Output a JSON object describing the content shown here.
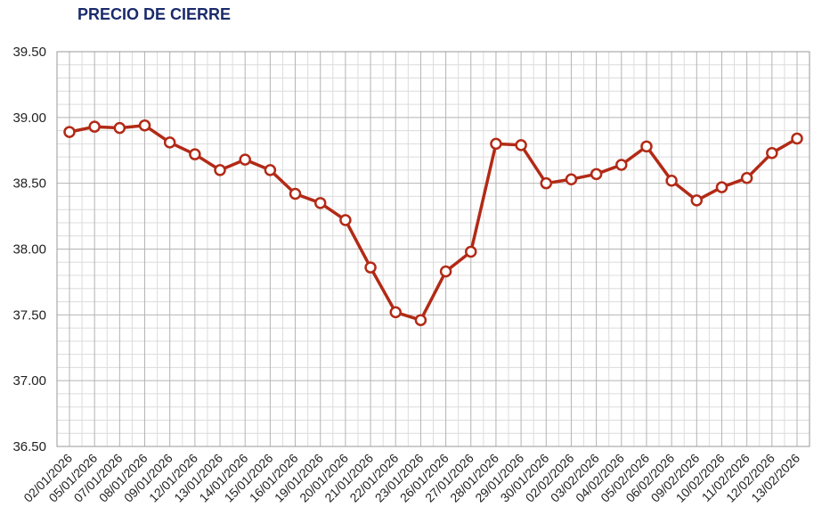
{
  "title": "PRECIO DE CIERRE",
  "colors": {
    "line": "#b22a16",
    "marker_fill": "#ffffff",
    "grid_major": "#b4b4b4",
    "grid_minor": "#dcdcdc",
    "title": "#1a2a6c"
  },
  "chart_data": {
    "type": "line",
    "title": "PRECIO DE CIERRE",
    "xlabel": "",
    "ylabel": "",
    "ylim": [
      36.5,
      39.5
    ],
    "y_ticks": [
      "36.50",
      "37.00",
      "37.50",
      "38.00",
      "38.50",
      "39.00",
      "39.50"
    ],
    "grid": true,
    "legend": "none",
    "categories": [
      "02/01/2026",
      "05/01/2026",
      "07/01/2026",
      "08/01/2026",
      "09/01/2026",
      "12/01/2026",
      "13/01/2026",
      "14/01/2026",
      "15/01/2026",
      "16/01/2026",
      "19/01/2026",
      "20/01/2026",
      "21/01/2026",
      "22/01/2026",
      "23/01/2026",
      "26/01/2026",
      "27/01/2026",
      "28/01/2026",
      "29/01/2026",
      "30/01/2026",
      "02/02/2026",
      "03/02/2026",
      "04/02/2026",
      "05/02/2026",
      "06/02/2026",
      "09/02/2026",
      "10/02/2026",
      "11/02/2026",
      "12/02/2026",
      "13/02/2026"
    ],
    "series": [
      {
        "values": [
          38.89,
          38.93,
          38.92,
          38.94,
          38.81,
          38.72,
          38.6,
          38.68,
          38.6,
          38.42,
          38.35,
          38.22,
          37.86,
          37.52,
          37.46,
          37.83,
          37.98,
          38.8,
          38.79,
          38.5,
          38.53,
          38.57,
          38.64,
          38.78,
          38.52,
          38.37,
          38.47,
          38.54,
          38.73,
          38.84
        ]
      }
    ]
  }
}
